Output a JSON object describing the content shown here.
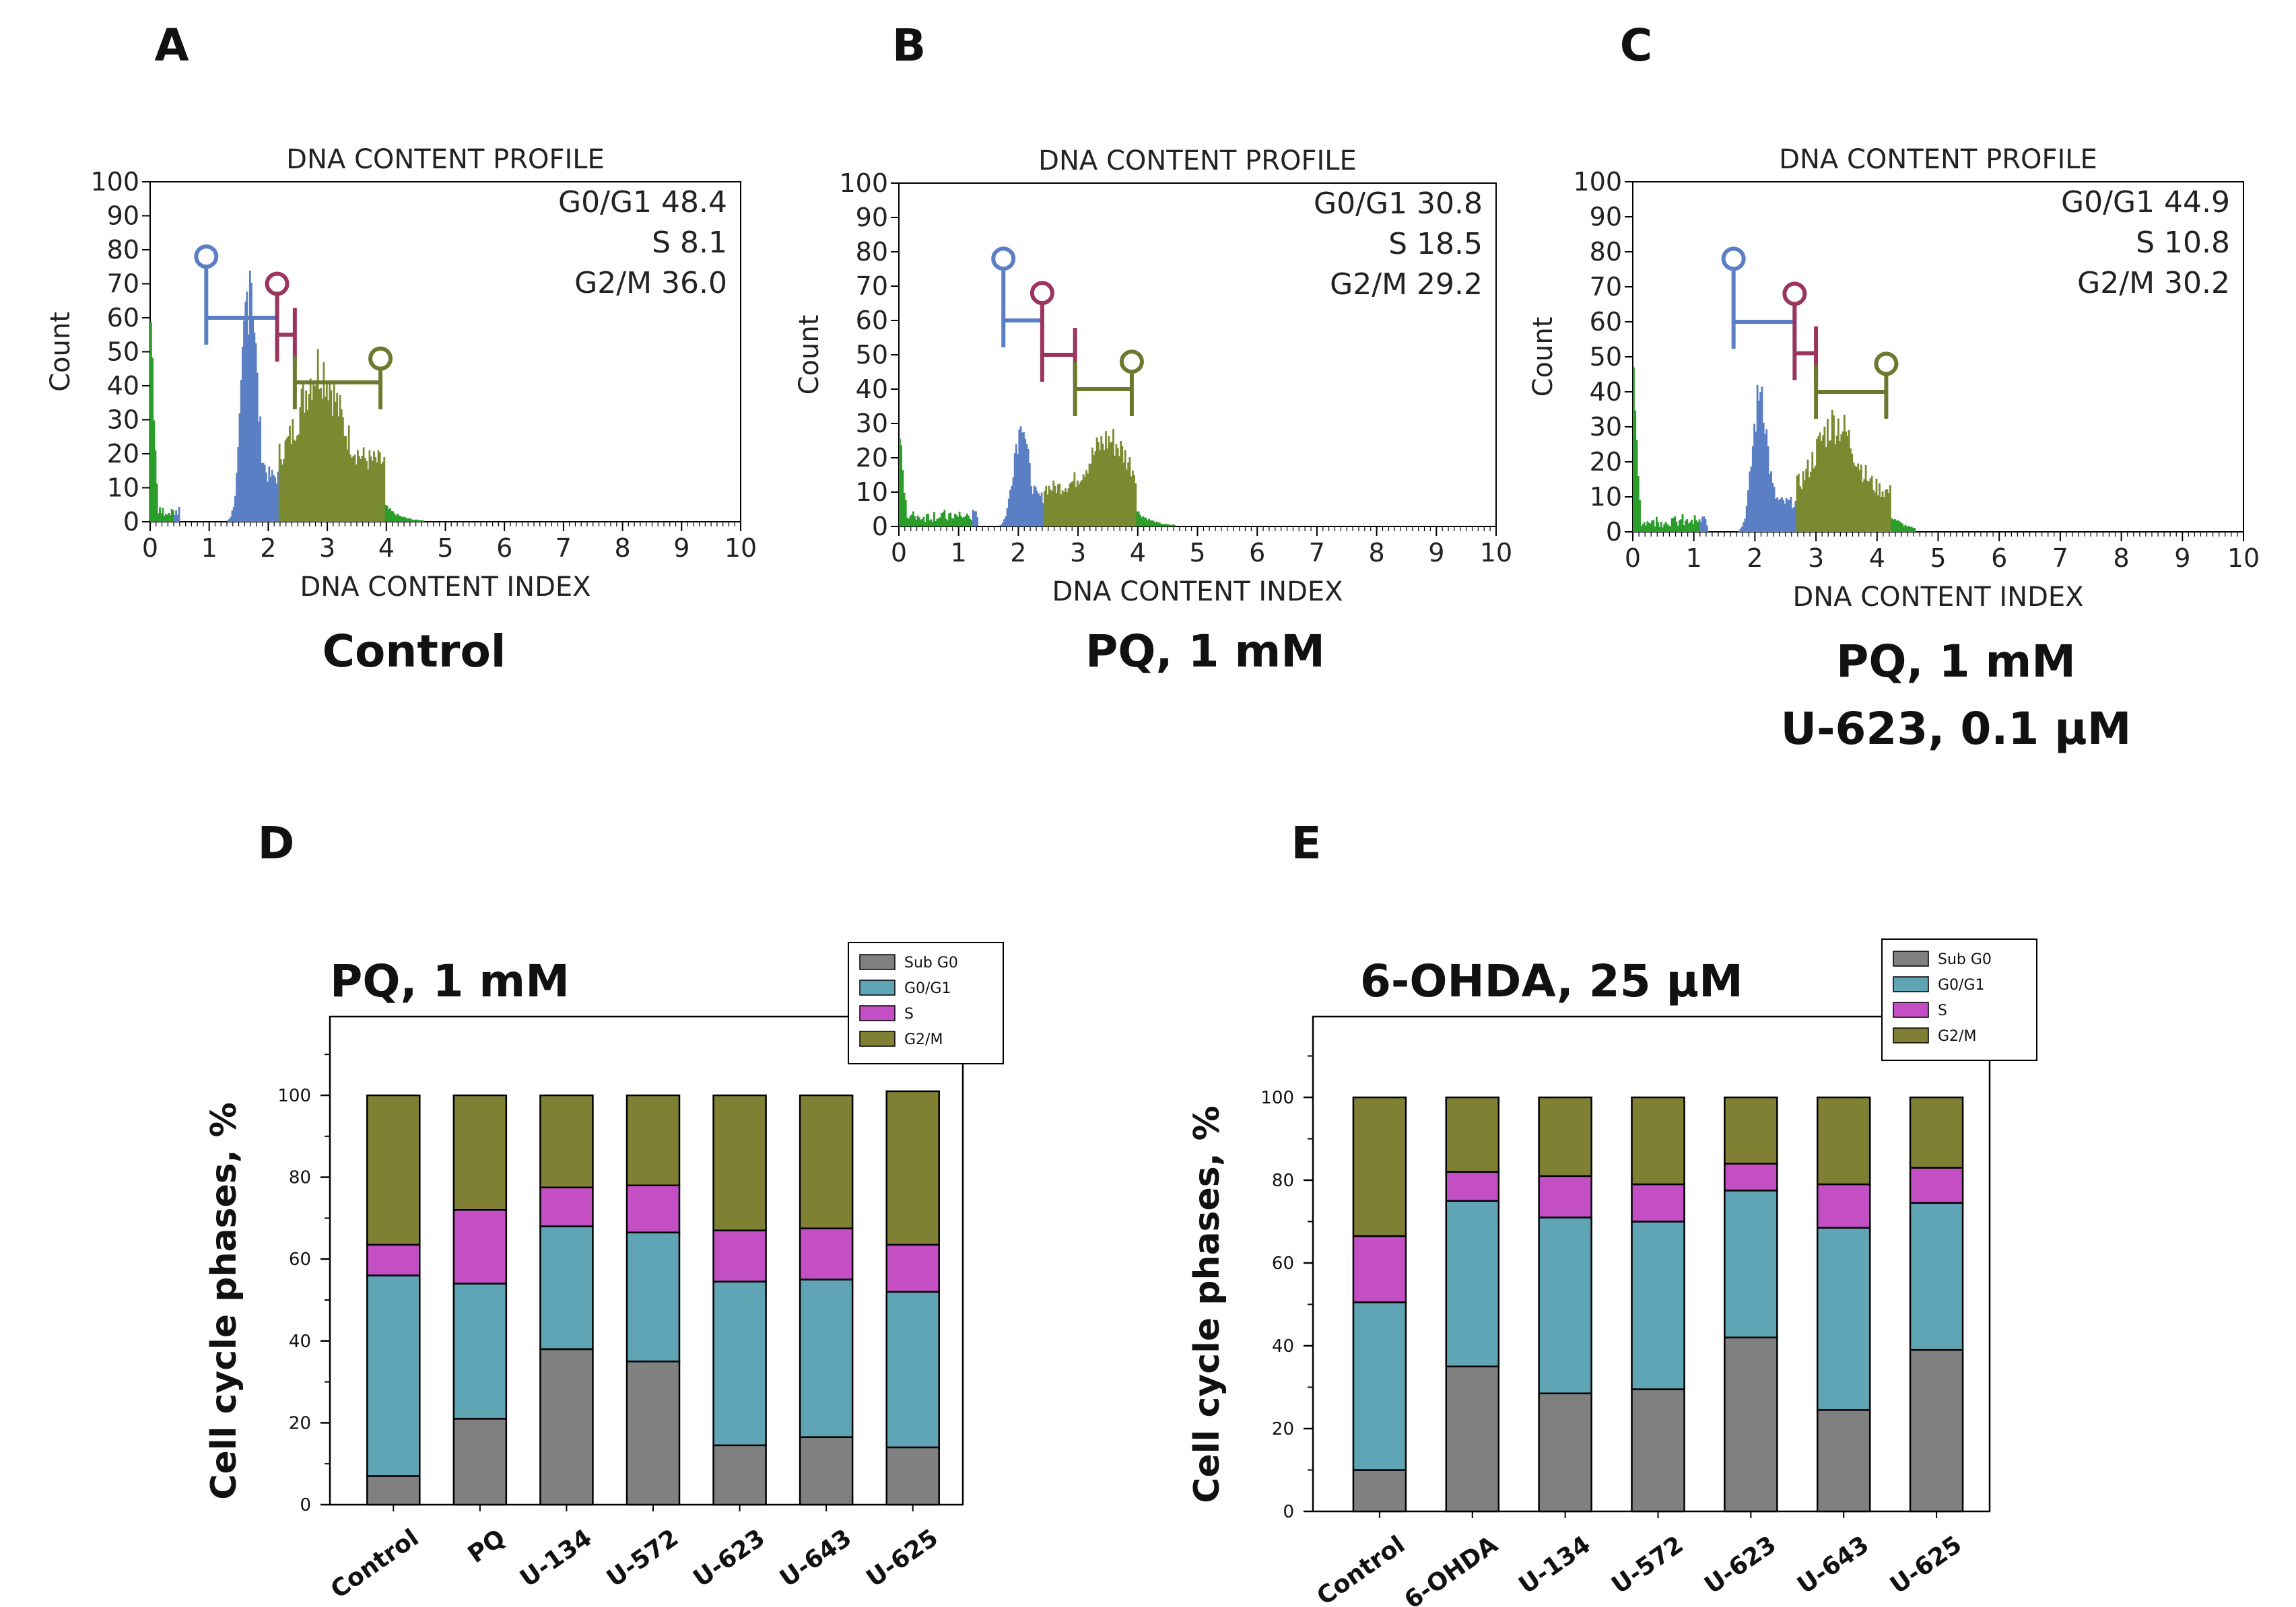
{
  "figure": {
    "panel_letters": [
      "A",
      "B",
      "C",
      "D",
      "E"
    ]
  },
  "chart_data": [
    {
      "id": "A",
      "type": "histogram",
      "title": "DNA CONTENT PROFILE",
      "xlabel": "DNA CONTENT INDEX",
      "ylabel": "Count",
      "xlim": [
        0,
        10
      ],
      "ylim": [
        0,
        100
      ],
      "xticks": [
        "0",
        "1",
        "2",
        "3",
        "4",
        "5",
        "6",
        "7",
        "8",
        "9",
        "10"
      ],
      "yticks": [
        "0",
        "10",
        "20",
        "30",
        "40",
        "50",
        "60",
        "70",
        "80",
        "90",
        "100"
      ],
      "stats": [
        "G0/G1 48.4",
        "S 8.1",
        "G2/M 36.0"
      ],
      "caption": [
        "Control"
      ],
      "gates": [
        {
          "phase": "G0/G1",
          "color": "#5b7fc4",
          "x1": 0.95,
          "x2": 2.15,
          "y": 60,
          "marker_x": 0.95,
          "marker_y": 78
        },
        {
          "phase": "S",
          "color": "#9b3560",
          "x1": 2.15,
          "x2": 2.45,
          "y": 55,
          "marker_x": 2.15,
          "marker_y": 70
        },
        {
          "phase": "G2/M",
          "color": "#6b7a2e",
          "x1": 2.45,
          "x2": 3.9,
          "y": 41,
          "marker_x": 3.9,
          "marker_y": 48
        }
      ],
      "peaks": {
        "subg0": 57,
        "g1_center": 1.65,
        "g1_height": 68,
        "s_level": 22,
        "g2_center": 2.85,
        "g2_height": 28
      }
    },
    {
      "id": "B",
      "type": "histogram",
      "title": "DNA CONTENT PROFILE",
      "xlabel": "DNA CONTENT INDEX",
      "ylabel": "Count",
      "xlim": [
        0,
        10
      ],
      "ylim": [
        0,
        100
      ],
      "xticks": [
        "0",
        "1",
        "2",
        "3",
        "4",
        "5",
        "6",
        "7",
        "8",
        "9",
        "10"
      ],
      "yticks": [
        "0",
        "10",
        "20",
        "30",
        "40",
        "50",
        "60",
        "70",
        "80",
        "90",
        "100"
      ],
      "stats": [
        "G0/G1 30.8",
        "S 18.5",
        "G2/M 29.2"
      ],
      "caption": [
        "PQ, 1 mM"
      ],
      "gates": [
        {
          "phase": "G0/G1",
          "color": "#5b7fc4",
          "x1": 1.75,
          "x2": 2.4,
          "y": 60,
          "marker_x": 1.75,
          "marker_y": 78
        },
        {
          "phase": "S",
          "color": "#9b3560",
          "x1": 2.4,
          "x2": 2.95,
          "y": 50,
          "marker_x": 2.4,
          "marker_y": 68
        },
        {
          "phase": "G2/M",
          "color": "#6b7a2e",
          "x1": 2.95,
          "x2": 3.9,
          "y": 40,
          "marker_x": 3.9,
          "marker_y": 48
        }
      ],
      "peaks": {
        "subg0": 27,
        "g1_center": 2.0,
        "g1_height": 27,
        "s_level": 14,
        "g2_center": 3.5,
        "g2_height": 14
      }
    },
    {
      "id": "C",
      "type": "histogram",
      "title": "DNA CONTENT PROFILE",
      "xlabel": "DNA CONTENT INDEX",
      "ylabel": "Count",
      "xlim": [
        0,
        10
      ],
      "ylim": [
        0,
        100
      ],
      "xticks": [
        "0",
        "1",
        "2",
        "3",
        "4",
        "5",
        "6",
        "7",
        "8",
        "9",
        "10"
      ],
      "yticks": [
        "0",
        "10",
        "20",
        "30",
        "40",
        "50",
        "60",
        "70",
        "80",
        "90",
        "100"
      ],
      "stats": [
        "G0/G1 44.9",
        "S 10.8",
        "G2/M 30.2"
      ],
      "caption": [
        "PQ, 1 mM",
        "U-623, 0.1 μM"
      ],
      "gates": [
        {
          "phase": "G0/G1",
          "color": "#5b7fc4",
          "x1": 1.65,
          "x2": 2.65,
          "y": 60,
          "marker_x": 1.65,
          "marker_y": 78
        },
        {
          "phase": "S",
          "color": "#9b3560",
          "x1": 2.65,
          "x2": 3.0,
          "y": 51,
          "marker_x": 2.65,
          "marker_y": 68
        },
        {
          "phase": "G2/M",
          "color": "#6b7a2e",
          "x1": 3.0,
          "x2": 4.15,
          "y": 40,
          "marker_x": 4.15,
          "marker_y": 48
        }
      ],
      "peaks": {
        "subg0": 40,
        "g1_center": 2.05,
        "g1_height": 37,
        "s_level": 14,
        "g2_center": 3.3,
        "g2_height": 20
      }
    },
    {
      "id": "D",
      "type": "bar",
      "stacked": true,
      "title": "PQ, 1 mM",
      "ylabel": "Cell cycle phases,  %",
      "xlabel": "",
      "ylim": [
        0,
        120
      ],
      "yticks": [
        "0",
        "20",
        "40",
        "60",
        "80",
        "100"
      ],
      "categories": [
        "Control",
        "PQ",
        "U-134",
        "U-572",
        "U-623",
        "U-643",
        "U-625"
      ],
      "series": [
        {
          "name": "Sub G0",
          "color": "#808080",
          "values": [
            7,
            21,
            38,
            35,
            14.5,
            16.5,
            14
          ]
        },
        {
          "name": "G0/G1",
          "color": "#5fa5b5",
          "values": [
            49,
            33,
            30,
            31.5,
            40,
            38.5,
            38
          ]
        },
        {
          "name": "S",
          "color": "#c44fc4",
          "values": [
            7.5,
            18,
            9.5,
            11.5,
            12.5,
            12.5,
            11.5
          ]
        },
        {
          "name": "G2/M",
          "color": "#808035",
          "values": [
            36.5,
            28,
            22.5,
            22,
            33,
            32.5,
            37.5
          ]
        }
      ],
      "legend": [
        "Sub G0",
        "G0/G1",
        "S",
        "G2/M"
      ]
    },
    {
      "id": "E",
      "type": "bar",
      "stacked": true,
      "title": "6-OHDA, 25 μM",
      "ylabel": "Cell cycle phases,  %",
      "xlabel": "",
      "ylim": [
        0,
        120
      ],
      "yticks": [
        "0",
        "20",
        "40",
        "60",
        "80",
        "100"
      ],
      "categories": [
        "Control",
        "6-OHDA",
        "U-134",
        "U-572",
        "U-623",
        "U-643",
        "U-625"
      ],
      "series": [
        {
          "name": "Sub G0",
          "color": "#808080",
          "values": [
            10,
            35,
            28.5,
            29.5,
            42,
            24.5,
            39
          ]
        },
        {
          "name": "G0/G1",
          "color": "#5fa5b5",
          "values": [
            40.5,
            40,
            42.5,
            40.5,
            35.5,
            44,
            35.5
          ]
        },
        {
          "name": "S",
          "color": "#c44fc4",
          "values": [
            16,
            7,
            10,
            9,
            6.5,
            10.5,
            8.5
          ]
        },
        {
          "name": "G2/M",
          "color": "#808035",
          "values": [
            33.5,
            18,
            19,
            21,
            16,
            21,
            17
          ]
        }
      ],
      "legend": [
        "Sub G0",
        "G0/G1",
        "S",
        "G2/M"
      ]
    }
  ]
}
